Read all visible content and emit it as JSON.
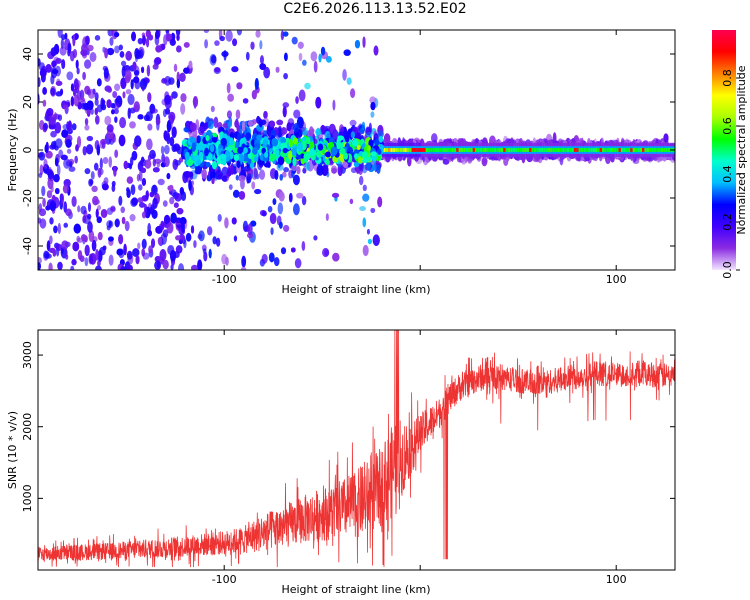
{
  "title": "C2E6.2026.113.13.52.E02",
  "chart_data": [
    {
      "type": "heatmap",
      "name": "spectrogram",
      "xlabel": "Height of straight line (km)",
      "ylabel": "Frequency (Hz)",
      "xlim": [
        -195,
        130
      ],
      "ylim": [
        -50,
        50
      ],
      "xticks": [
        -100,
        0,
        100
      ],
      "xtick_labels": [
        "-100",
        "",
        "100"
      ],
      "yticks": [
        -40,
        -20,
        0,
        20,
        40
      ],
      "ytick_labels": [
        "-40",
        "-20",
        "0",
        "20",
        "40"
      ],
      "colorbar": {
        "label": "Normalized spectral amplitude",
        "range": [
          0,
          1
        ],
        "ticks": [
          0.0,
          0.2,
          0.4,
          0.6,
          0.8
        ],
        "tick_labels": [
          "0.0",
          "0.2",
          "0.4",
          "0.6",
          "0.8"
        ],
        "colors": [
          "#f3e6ff",
          "#8a2be2",
          "#3f00ff",
          "#0000ff",
          "#00bfff",
          "#00ffcc",
          "#00ff00",
          "#aaff00",
          "#ffff00",
          "#ff8000",
          "#ff0000",
          "#ff0050"
        ]
      },
      "regions": [
        {
          "x": [
            -195,
            -120
          ],
          "freq_halfwidth": 50,
          "level": 0.15,
          "description_level": "scattered noise"
        },
        {
          "x": [
            -120,
            -20
          ],
          "freq_halfwidth": 10,
          "level": 0.35
        },
        {
          "x": [
            -20,
            0
          ],
          "freq_halfwidth": 2,
          "level": 0.8
        },
        {
          "x": [
            0,
            130
          ],
          "freq_halfwidth": 2,
          "level": 0.5
        }
      ]
    },
    {
      "type": "line",
      "name": "snr",
      "xlabel": "Height of straight line (km)",
      "ylabel": "SNR (10 * v/v)",
      "xlim": [
        -195,
        130
      ],
      "ylim": [
        0,
        3350
      ],
      "xticks": [
        -100,
        0,
        100
      ],
      "xtick_labels": [
        "-100",
        "",
        "100"
      ],
      "yticks": [
        1000,
        2000,
        3000
      ],
      "ytick_labels": [
        "1000",
        "2000",
        "3000"
      ],
      "color": "#ee3333",
      "series": [
        {
          "name": "SNR",
          "x": [
            -195,
            -180,
            -160,
            -140,
            -120,
            -100,
            -90,
            -80,
            -70,
            -60,
            -50,
            -40,
            -30,
            -20,
            -15,
            -10,
            -5,
            0,
            5,
            10,
            15,
            20,
            30,
            40,
            50,
            60,
            70,
            80,
            90,
            100,
            110,
            120,
            130
          ],
          "y": [
            220,
            240,
            260,
            290,
            330,
            380,
            420,
            520,
            600,
            700,
            780,
            850,
            950,
            1150,
            1350,
            1550,
            1700,
            1900,
            2050,
            2200,
            2400,
            2550,
            2680,
            2700,
            2650,
            2600,
            2650,
            2700,
            2750,
            2720,
            2750,
            2720,
            2700
          ],
          "noise": [
            130,
            140,
            150,
            170,
            190,
            210,
            240,
            330,
            380,
            420,
            470,
            520,
            620,
            700,
            800,
            700,
            500,
            350,
            300,
            270,
            260,
            250,
            240,
            230,
            220,
            220,
            220,
            220,
            220,
            220,
            220,
            220,
            220
          ]
        }
      ]
    }
  ]
}
